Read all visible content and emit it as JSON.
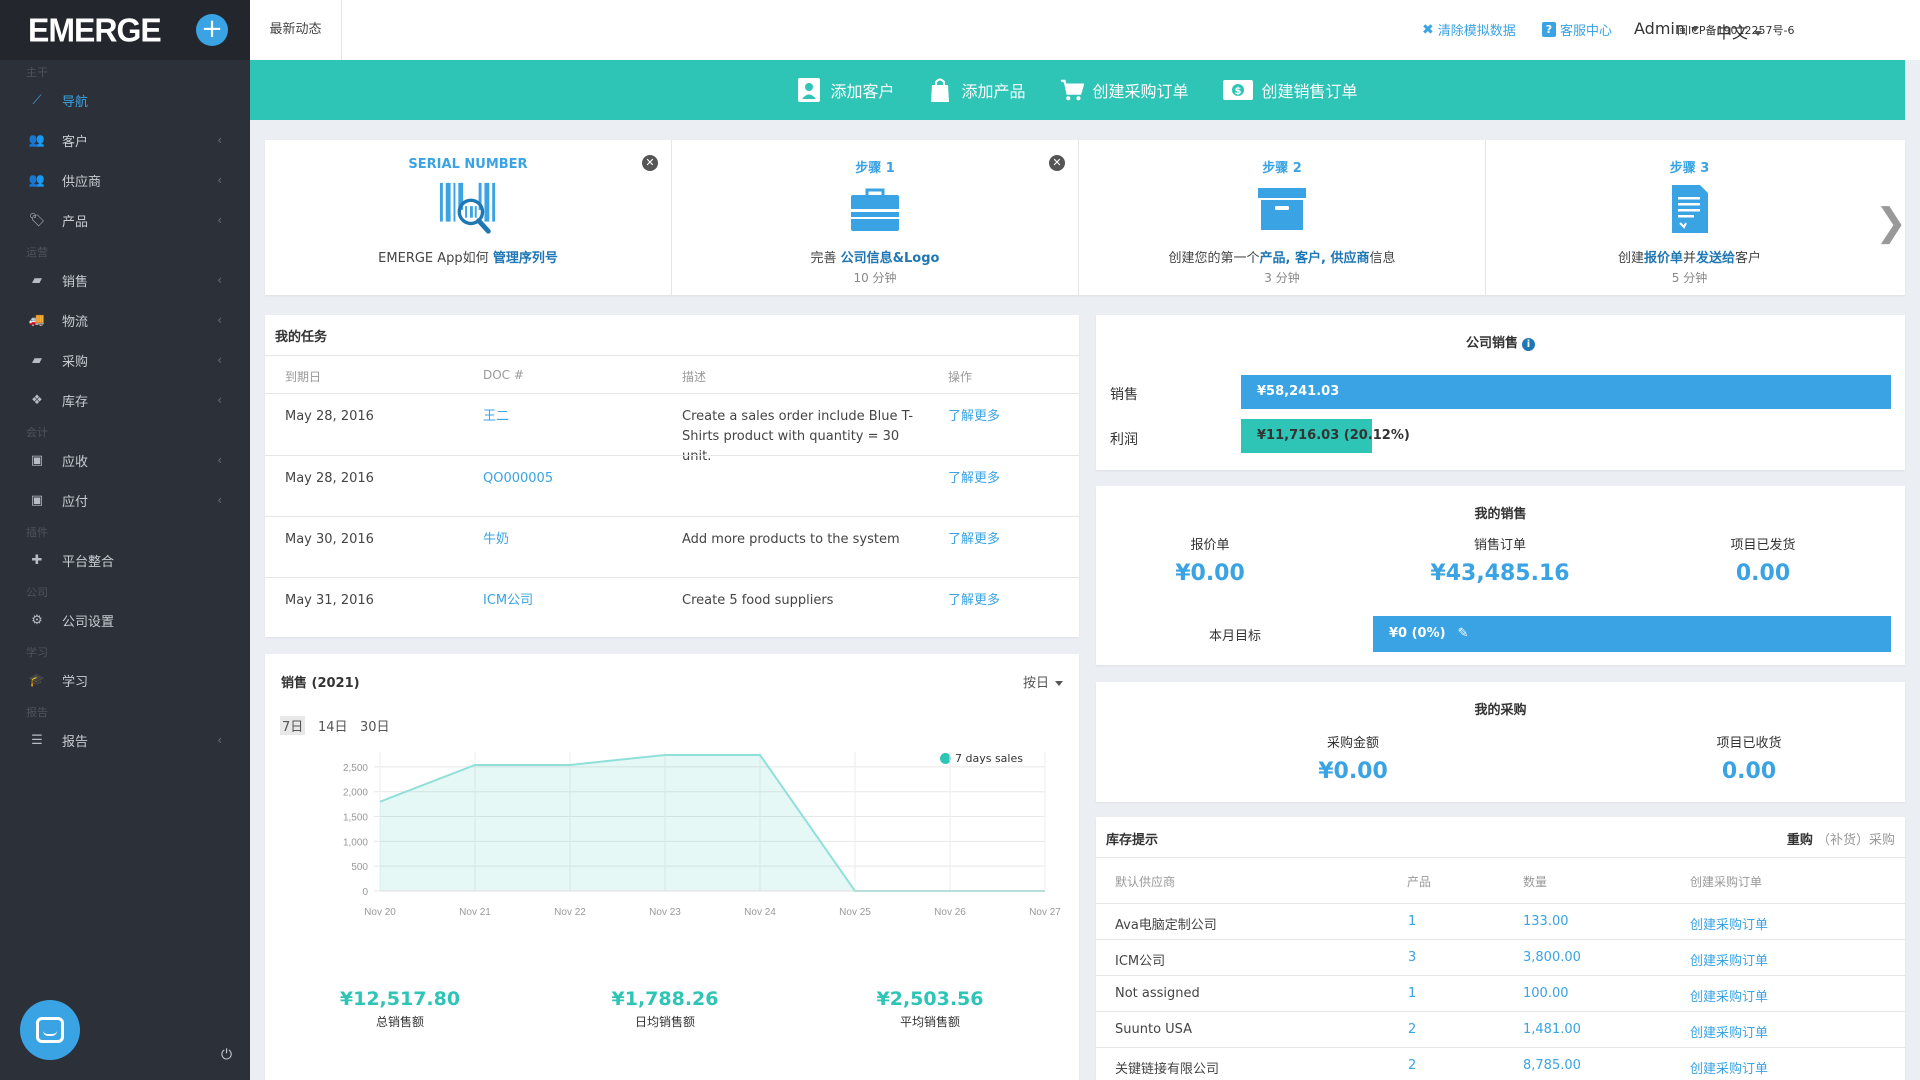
{
  "sidebar": {
    "logo": "EMERGE",
    "add_symbol": "+",
    "items": [
      {
        "section": "主干",
        "label": "导航",
        "icon": "line-chart-icon",
        "glyph": "⟋",
        "chev": false,
        "active": true
      },
      {
        "section": "",
        "label": "客户",
        "icon": "users-icon",
        "glyph": "👥",
        "chev": true
      },
      {
        "section": "",
        "label": "供应商",
        "icon": "users-icon",
        "glyph": "👥",
        "chev": true
      },
      {
        "section": "",
        "label": "产品",
        "icon": "tags-icon",
        "glyph": "🏷",
        "chev": true
      },
      {
        "section": "运营",
        "label": "销售",
        "icon": "book-icon",
        "glyph": "▰",
        "chev": true
      },
      {
        "section": "",
        "label": "物流",
        "icon": "truck-icon",
        "glyph": "🚚",
        "chev": true
      },
      {
        "section": "",
        "label": "采购",
        "icon": "book-icon",
        "glyph": "▰",
        "chev": true
      },
      {
        "section": "",
        "label": "库存",
        "icon": "cubes-icon",
        "glyph": "❖",
        "chev": true
      },
      {
        "section": "会计",
        "label": "应收",
        "icon": "money-icon",
        "glyph": "▣",
        "chev": true
      },
      {
        "section": "",
        "label": "应付",
        "icon": "money-icon",
        "glyph": "▣",
        "chev": true
      },
      {
        "section": "插件",
        "label": "平台整合",
        "icon": "puzzle-icon",
        "glyph": "✚",
        "chev": false
      },
      {
        "section": "公司",
        "label": "公司设置",
        "icon": "gear-icon",
        "glyph": "⚙",
        "chev": false
      },
      {
        "section": "学习",
        "label": "学习",
        "icon": "graduation-cap-icon",
        "glyph": "🎓",
        "chev": false
      },
      {
        "section": "报告",
        "label": "报告",
        "icon": "list-icon",
        "glyph": "☰",
        "chev": true
      }
    ],
    "power_glyph": "⏻"
  },
  "topbar": {
    "tab": "最新动态",
    "clear_data": "清除模拟数据",
    "help": "客服中心",
    "user": "Admin",
    "lang": "中文",
    "icp": "闽ICP备19012257号-6"
  },
  "actions": {
    "add_customer": "添加客户",
    "add_product": "添加产品",
    "create_po": "创建采购订单",
    "create_so": "创建销售订单"
  },
  "steps": [
    {
      "title": "SERIAL NUMBER",
      "desc_pre": "EMERGE App如何 ",
      "desc_hl": "管理序列号",
      "desc_post": "",
      "sub": "",
      "closable": true
    },
    {
      "title": "步骤 1",
      "desc_pre": "完善 ",
      "desc_hl": "公司信息&Logo",
      "desc_post": "",
      "sub": "10 分钟",
      "closable": true
    },
    {
      "title": "步骤 2",
      "desc_pre": "创建您的第一个",
      "desc_hl": "产品, 客户, 供应商",
      "desc_post": "信息",
      "sub": "3 分钟",
      "closable": false
    },
    {
      "title": "步骤 3",
      "desc_pre": "创建",
      "desc_hl": "报价单",
      "desc_mid": "并",
      "desc_hl2": "发送给",
      "desc_post": "客户",
      "sub": "5 分钟",
      "closable": false
    }
  ],
  "tasks": {
    "title": "我的任务",
    "headers": [
      "到期日",
      "DOC #",
      "描述",
      "操作"
    ],
    "rows": [
      {
        "date": "May 28, 2016",
        "doc": "王二",
        "desc": "Create a sales order include Blue T-Shirts product with quantity = 30 unit.",
        "action": "了解更多"
      },
      {
        "date": "May 28, 2016",
        "doc": "QO000005",
        "desc": "",
        "action": "了解更多"
      },
      {
        "date": "May 30, 2016",
        "doc": "牛奶",
        "desc": "Add more products to the system",
        "action": "了解更多"
      },
      {
        "date": "May 31, 2016",
        "doc": "ICM公司",
        "desc": "Create 5 food suppliers",
        "action": "了解更多"
      }
    ]
  },
  "sales": {
    "title": "销售 (2021)",
    "period_select": "按日",
    "ranges": [
      "7日",
      "14日",
      "30日"
    ],
    "selected_range": "7日",
    "kpis": [
      {
        "value": "¥12,517.80",
        "label": "总销售额"
      },
      {
        "value": "¥1,788.26",
        "label": "日均销售额"
      },
      {
        "value": "¥2,503.56",
        "label": "平均销售额"
      }
    ]
  },
  "chart_data": {
    "type": "area",
    "series": [
      {
        "name": "7 days sales",
        "color": "#2ec4b6",
        "values": [
          1800,
          2540,
          2540,
          2740,
          2740,
          0,
          0,
          0
        ]
      }
    ],
    "categories": [
      "Nov 20",
      "Nov 21",
      "Nov 22",
      "Nov 23",
      "Nov 24",
      "Nov 25",
      "Nov 26",
      "Nov 27"
    ],
    "y_ticks": [
      "0",
      "500",
      "1,000",
      "1,500",
      "2,000",
      "2,500"
    ],
    "ylim": [
      0,
      2700
    ],
    "grid": true,
    "legend_position": "top-right"
  },
  "company_sales": {
    "title": "公司销售",
    "info_symbol": "i",
    "rows": [
      {
        "label": "销售",
        "value": "¥58,241.03",
        "color": "#3aa3e3",
        "fraction": 1.0
      },
      {
        "label": "利润",
        "value": "¥11,716.03 (20.12%)",
        "color": "#2ec4b6",
        "fraction": 0.2012
      }
    ]
  },
  "my_sales": {
    "title": "我的销售",
    "cols": [
      {
        "label": "报价单",
        "value": "¥0.00"
      },
      {
        "label": "销售订单",
        "value": "¥43,485.16"
      },
      {
        "label": "项目已发货",
        "value": "0.00"
      }
    ],
    "target_label": "本月目标",
    "target_value": "¥0 (0%)"
  },
  "my_purchase": {
    "title": "我的采购",
    "cols": [
      {
        "label": "采购金额",
        "value": "¥0.00"
      },
      {
        "label": "项目已收货",
        "value": "0.00"
      }
    ]
  },
  "inventory": {
    "title": "库存提示",
    "tab_active": "重购",
    "tab_inactive": "（补货）采购",
    "headers": [
      "默认供应商",
      "产品",
      "数量",
      "创建采购订单"
    ],
    "rows": [
      {
        "vendor": "Ava电脑定制公司",
        "product": "1",
        "qty": "133.00",
        "action": "创建采购订单"
      },
      {
        "vendor": "ICM公司",
        "product": "3",
        "qty": "3,800.00",
        "action": "创建采购订单"
      },
      {
        "vendor": "Not assigned",
        "product": "1",
        "qty": "100.00",
        "action": "创建采购订单"
      },
      {
        "vendor": "Suunto USA",
        "product": "2",
        "qty": "1,481.00",
        "action": "创建采购订单"
      },
      {
        "vendor": "关键链接有限公司",
        "product": "2",
        "qty": "8,785.00",
        "action": "创建采购订单"
      }
    ]
  }
}
